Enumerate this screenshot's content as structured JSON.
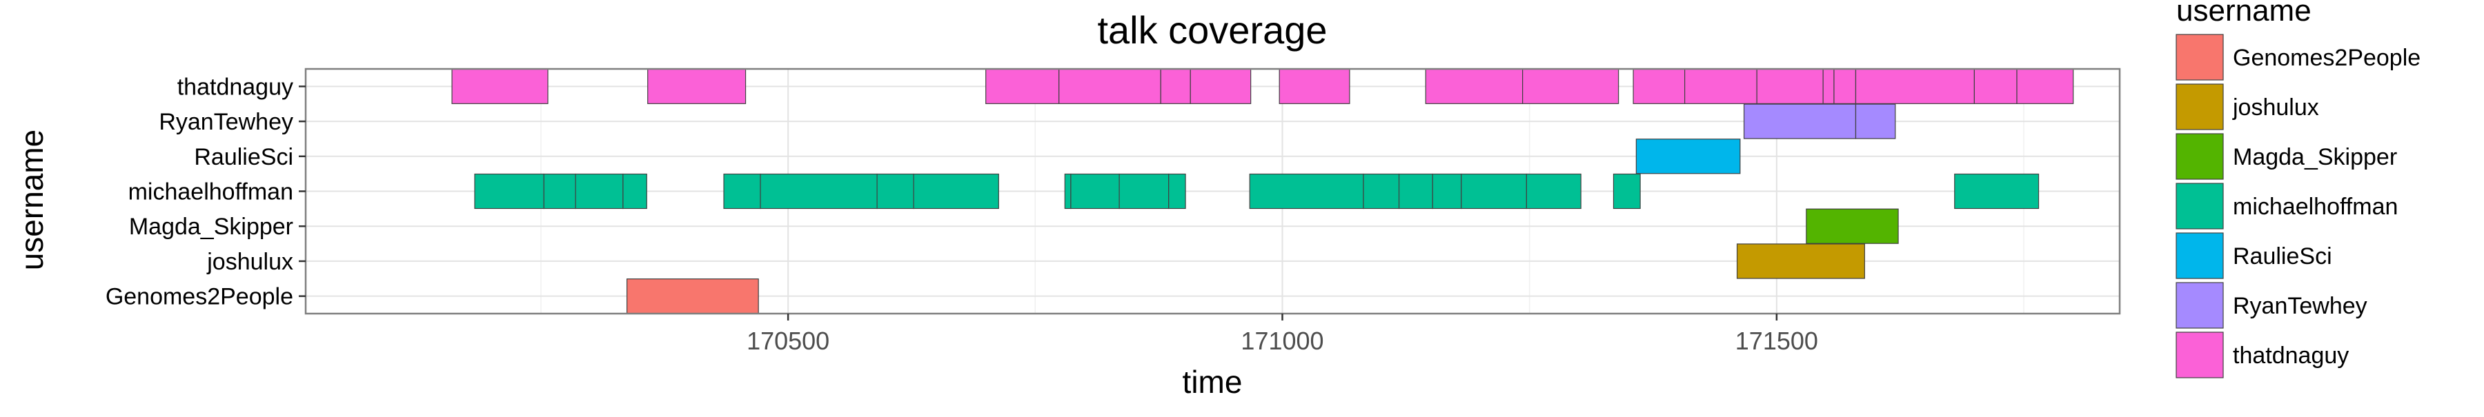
{
  "chart_data": {
    "type": "gantt",
    "title": "talk coverage",
    "xlabel": "time",
    "ylabel": "username",
    "xlim": [
      170012,
      171847
    ],
    "x_ticks": [
      170500,
      171000,
      171500
    ],
    "x_tick_labels": [
      "170500",
      "171000",
      "171500"
    ],
    "categories": [
      "thatdnaguy",
      "RyanTewhey",
      "RaulieSci",
      "michaelhoffman",
      "Magda_Skipper",
      "joshulux",
      "Genomes2People"
    ],
    "legend": {
      "title": "username",
      "position": "right",
      "entries": [
        "Genomes2People",
        "joshulux",
        "Magda_Skipper",
        "michaelhoffman",
        "RaulieSci",
        "RyanTewhey",
        "thatdnaguy"
      ]
    },
    "colors": {
      "Genomes2People": "#F8766D",
      "joshulux": "#C49A00",
      "Magda_Skipper": "#53B400",
      "michaelhoffman": "#00C094",
      "RaulieSci": "#00B6EB",
      "RyanTewhey": "#A58AFF",
      "thatdnaguy": "#FB61D7"
    },
    "grid": true,
    "series": [
      {
        "name": "thatdnaguy",
        "intervals": [
          [
            170160,
            170257
          ],
          [
            170358,
            170457
          ],
          [
            170700,
            170774
          ],
          [
            170774,
            170877
          ],
          [
            170877,
            170907
          ],
          [
            170907,
            170968
          ],
          [
            170997,
            171068
          ],
          [
            171145,
            171243
          ],
          [
            171243,
            171340
          ],
          [
            171355,
            171407
          ],
          [
            171407,
            171480
          ],
          [
            171480,
            171547
          ],
          [
            171547,
            171558
          ],
          [
            171558,
            171580
          ],
          [
            171580,
            171700
          ],
          [
            171700,
            171743
          ],
          [
            171743,
            171800
          ]
        ]
      },
      {
        "name": "RyanTewhey",
        "intervals": [
          [
            171467,
            171580
          ],
          [
            171580,
            171620
          ]
        ]
      },
      {
        "name": "RaulieSci",
        "intervals": [
          [
            171358,
            171463
          ]
        ]
      },
      {
        "name": "michaelhoffman",
        "intervals": [
          [
            170183,
            170253
          ],
          [
            170253,
            170285
          ],
          [
            170285,
            170333
          ],
          [
            170333,
            170357
          ],
          [
            170435,
            170472
          ],
          [
            170472,
            170590
          ],
          [
            170590,
            170627
          ],
          [
            170627,
            170713
          ],
          [
            170780,
            170786
          ],
          [
            170786,
            170835
          ],
          [
            170835,
            170885
          ],
          [
            170885,
            170902
          ],
          [
            170967,
            171082
          ],
          [
            171082,
            171118
          ],
          [
            171118,
            171152
          ],
          [
            171152,
            171181
          ],
          [
            171181,
            171247
          ],
          [
            171247,
            171302
          ],
          [
            171335,
            171362
          ],
          [
            171680,
            171765
          ]
        ]
      },
      {
        "name": "Magda_Skipper",
        "intervals": [
          [
            171530,
            171623
          ]
        ]
      },
      {
        "name": "joshulux",
        "intervals": [
          [
            171460,
            171589
          ]
        ]
      },
      {
        "name": "Genomes2People",
        "intervals": [
          [
            170337,
            170470
          ]
        ]
      }
    ]
  }
}
